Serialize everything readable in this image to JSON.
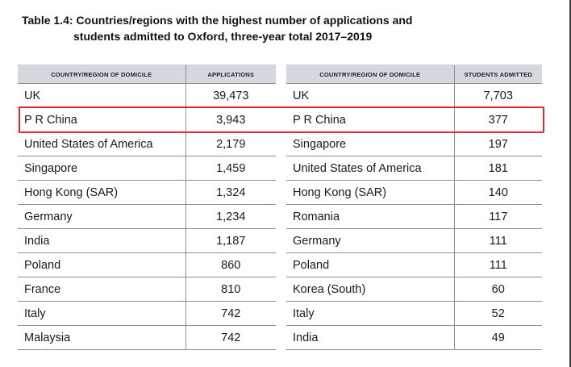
{
  "caption": {
    "label": "Table 1.4:",
    "line1": "Countries/regions with the highest number of applications and",
    "line2": "students admitted to Oxford, three-year total 2017–2019"
  },
  "applications_table": {
    "headers": [
      "COUNTRY/REGION OF DOMICILE",
      "APPLICATIONS"
    ],
    "rows": [
      {
        "country": "UK",
        "value": "39,473"
      },
      {
        "country": "P R China",
        "value": "3,943"
      },
      {
        "country": "United States of America",
        "value": "2,179"
      },
      {
        "country": "Singapore",
        "value": "1,459"
      },
      {
        "country": "Hong Kong (SAR)",
        "value": "1,324"
      },
      {
        "country": "Germany",
        "value": "1,234"
      },
      {
        "country": "India",
        "value": "1,187"
      },
      {
        "country": "Poland",
        "value": "860"
      },
      {
        "country": "France",
        "value": "810"
      },
      {
        "country": "Italy",
        "value": "742"
      },
      {
        "country": "Malaysia",
        "value": "742"
      }
    ]
  },
  "admitted_table": {
    "headers": [
      "COUNTRY/REGION OF DOMICILE",
      "STUDENTS ADMITTED"
    ],
    "rows": [
      {
        "country": "UK",
        "value": "7,703"
      },
      {
        "country": "P R China",
        "value": "377"
      },
      {
        "country": "Singapore",
        "value": "197"
      },
      {
        "country": "United States of America",
        "value": "181"
      },
      {
        "country": "Hong Kong (SAR)",
        "value": "140"
      },
      {
        "country": "Romania",
        "value": "117"
      },
      {
        "country": "Germany",
        "value": "111"
      },
      {
        "country": "Poland",
        "value": "111"
      },
      {
        "country": "Korea (South)",
        "value": "60"
      },
      {
        "country": "Italy",
        "value": "52"
      },
      {
        "country": "India",
        "value": "49"
      }
    ]
  },
  "highlight": {
    "row": "P R China",
    "color": "#e8282d"
  },
  "colors": {
    "header_bg": "#d6d8e0",
    "rule": "#8e8e8e"
  }
}
